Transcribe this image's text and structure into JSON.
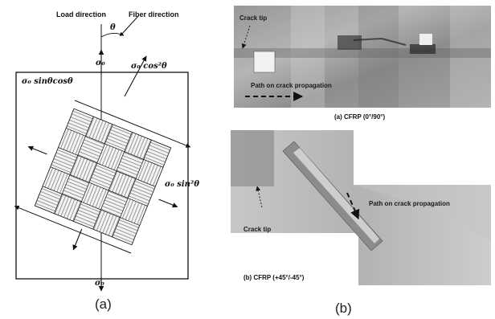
{
  "figure": {
    "panel_a": {
      "load_direction": "Load direction",
      "fiber_direction": "Fiber direction",
      "angle_symbol": "θ",
      "sigma_top": "σ₀",
      "sigma_bottom": "σ₀",
      "shear_stress": "σ₀ sinθcosθ",
      "fiber_stress": "σ₀ cos²θ",
      "transverse_stress": "σ₀ sin²θ",
      "label": "(a)"
    },
    "panel_b": {
      "photo1": {
        "crack_tip": "Crack tip",
        "path_label": "Path on crack propagation",
        "caption": "(a) CFRP (0°/90°)"
      },
      "photo2": {
        "crack_tip": "Crack tip",
        "path_label": "Path on crack propagation",
        "caption": "(b) CFRP (+45°/-45°)"
      },
      "label": "(b)"
    }
  }
}
